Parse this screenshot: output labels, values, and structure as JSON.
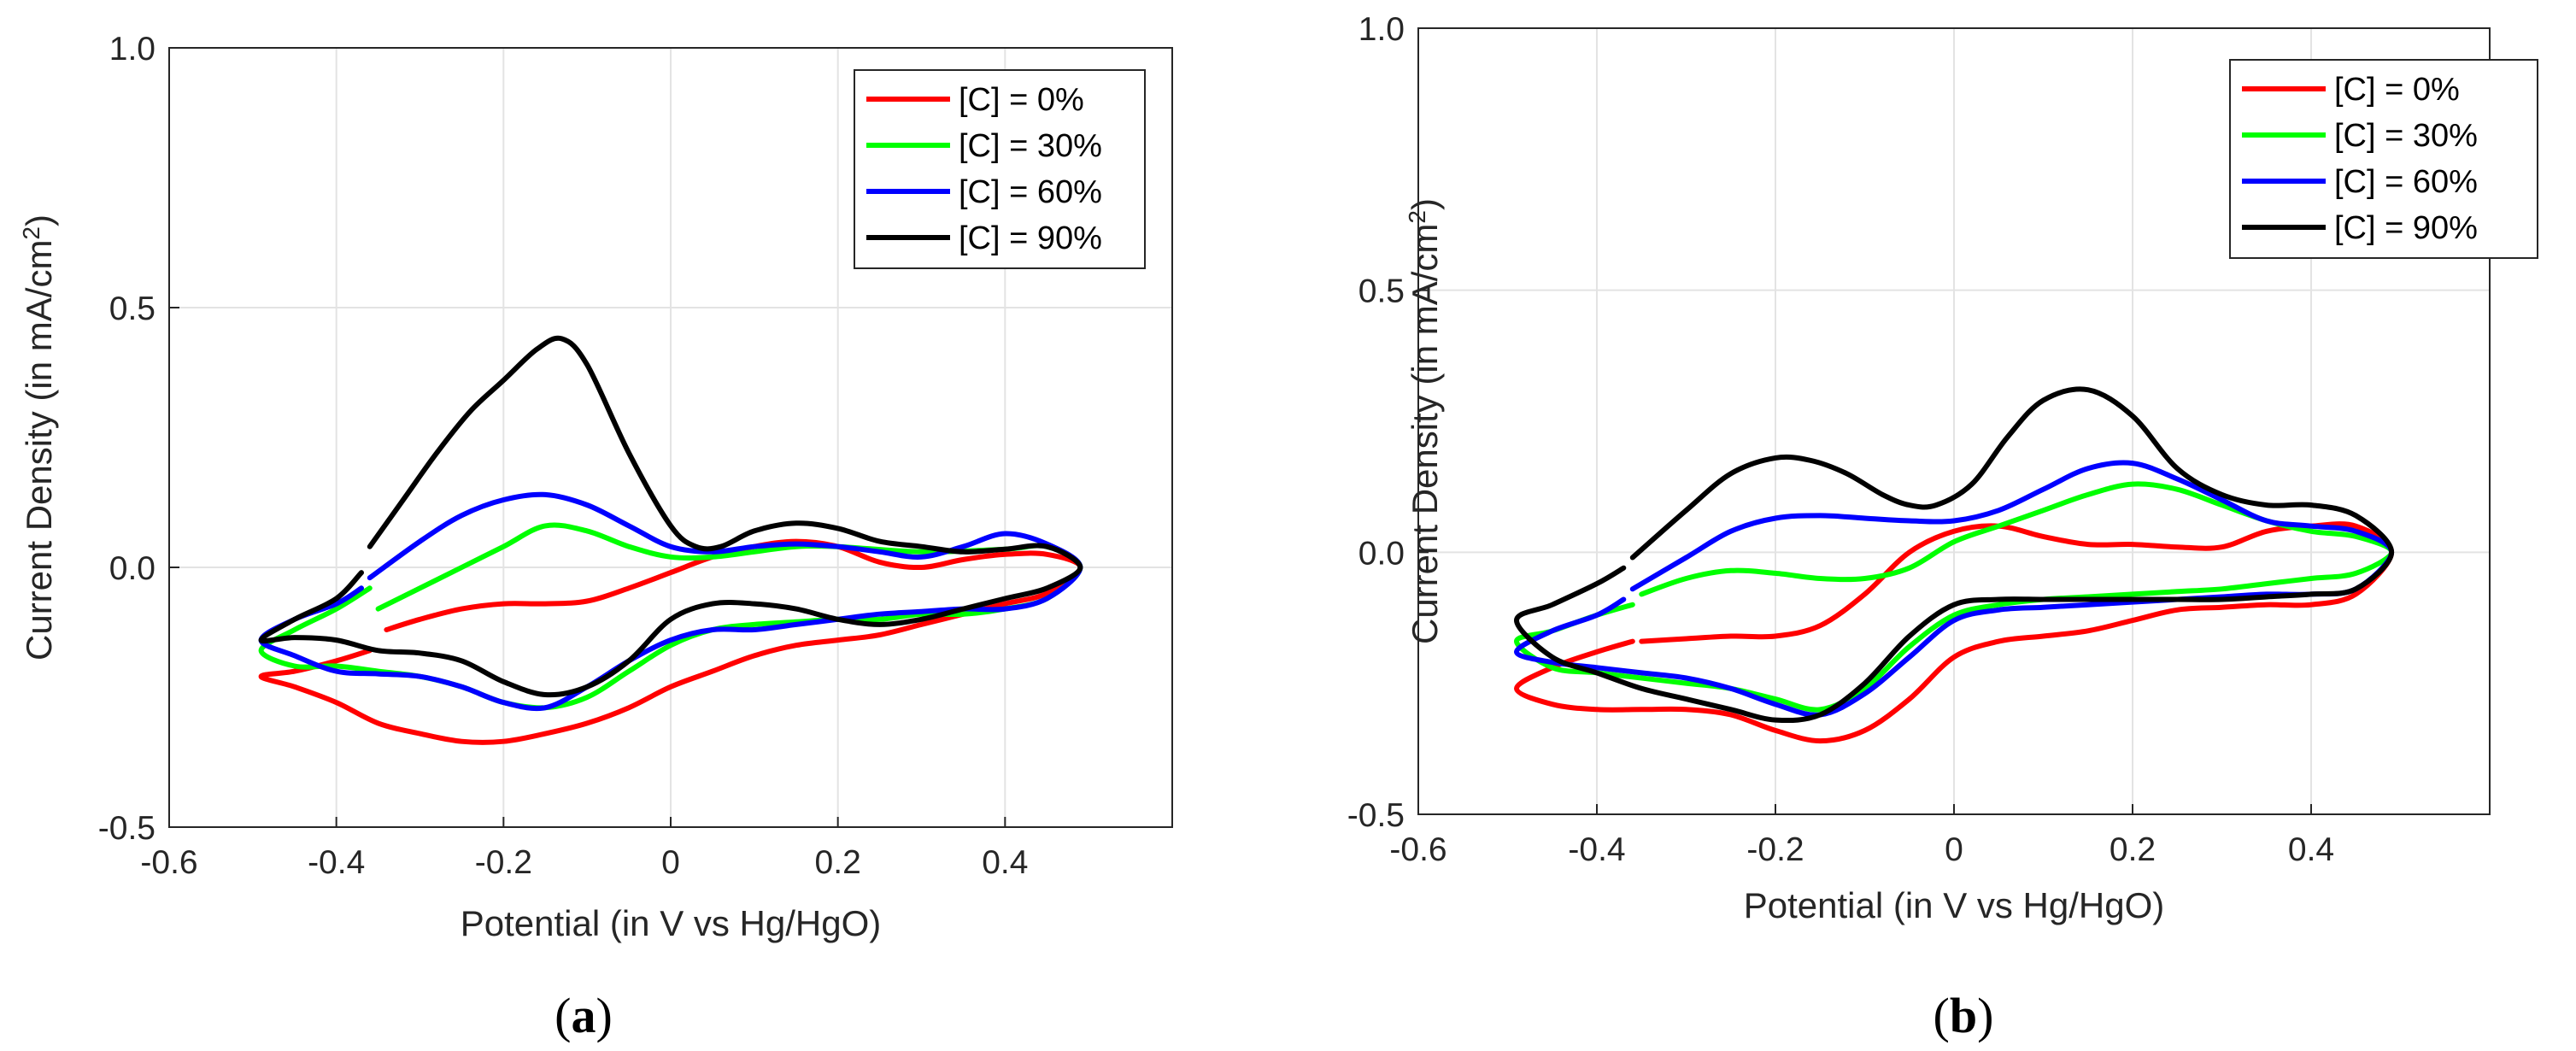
{
  "figure": {
    "panels": [
      {
        "label": "(a)",
        "label_paren_open": "(",
        "label_letter": "a",
        "label_paren_close": ")"
      },
      {
        "label": "(b)",
        "label_paren_open": "(",
        "label_letter": "b",
        "label_paren_close": ")"
      }
    ]
  },
  "chart_data": [
    {
      "type": "line",
      "panel": "(a)",
      "title": "",
      "xlabel": "Potential (in V vs Hg/HgO)",
      "ylabel": "Current Density (in mA/cm",
      "ylabel_sup": "2",
      "ylabel_close": ")",
      "xlim": [
        -0.6,
        0.6
      ],
      "ylim": [
        -0.5,
        1.0
      ],
      "xticks": [
        -0.6,
        -0.4,
        -0.2,
        0,
        0.2,
        0.4
      ],
      "xtick_labels": [
        "-0.6",
        "-0.4",
        "-0.2",
        "0",
        "0.2",
        "0.4"
      ],
      "yticks": [
        -0.5,
        0,
        0.5,
        1.0
      ],
      "ytick_labels": [
        "-0.5",
        "0.0",
        "0.5",
        "1.0"
      ],
      "grid": true,
      "legend_position": "top-right",
      "series": [
        {
          "name": "[C] = 0%",
          "color": "#ff0000",
          "x": [
            -0.34,
            -0.3,
            -0.25,
            -0.2,
            -0.15,
            -0.1,
            -0.05,
            0,
            0.05,
            0.1,
            0.15,
            0.2,
            0.25,
            0.3,
            0.35,
            0.4,
            0.45,
            0.49,
            0.45,
            0.4,
            0.35,
            0.3,
            0.25,
            0.2,
            0.15,
            0.1,
            0.05,
            0,
            -0.05,
            -0.1,
            -0.15,
            -0.2,
            -0.25,
            -0.3,
            -0.35,
            -0.4,
            -0.45,
            -0.49,
            -0.45,
            -0.4,
            -0.36
          ],
          "y": [
            -0.12,
            -0.1,
            -0.08,
            -0.07,
            -0.07,
            -0.065,
            -0.04,
            -0.01,
            0.02,
            0.04,
            0.05,
            0.04,
            0.01,
            0.0,
            0.015,
            0.025,
            0.025,
            0.0,
            -0.05,
            -0.07,
            -0.09,
            -0.11,
            -0.13,
            -0.14,
            -0.15,
            -0.17,
            -0.2,
            -0.23,
            -0.27,
            -0.3,
            -0.32,
            -0.335,
            -0.335,
            -0.32,
            -0.3,
            -0.26,
            -0.23,
            -0.21,
            -0.2,
            -0.18,
            -0.16
          ]
        },
        {
          "name": "[C] = 30%",
          "color": "#00ff00",
          "x": [
            -0.35,
            -0.3,
            -0.25,
            -0.2,
            -0.15,
            -0.1,
            -0.05,
            0,
            0.05,
            0.1,
            0.15,
            0.2,
            0.3,
            0.4,
            0.45,
            0.49,
            0.45,
            0.4,
            0.35,
            0.3,
            0.25,
            0.2,
            0.15,
            0.1,
            0.05,
            0,
            -0.05,
            -0.1,
            -0.15,
            -0.2,
            -0.25,
            -0.3,
            -0.35,
            -0.4,
            -0.45,
            -0.49,
            -0.45,
            -0.4,
            -0.36
          ],
          "y": [
            -0.08,
            -0.04,
            0.0,
            0.04,
            0.08,
            0.07,
            0.04,
            0.02,
            0.02,
            0.03,
            0.04,
            0.04,
            0.03,
            0.035,
            0.04,
            0.0,
            -0.06,
            -0.08,
            -0.09,
            -0.09,
            -0.1,
            -0.1,
            -0.105,
            -0.11,
            -0.12,
            -0.15,
            -0.2,
            -0.25,
            -0.27,
            -0.26,
            -0.23,
            -0.21,
            -0.2,
            -0.19,
            -0.19,
            -0.16,
            -0.12,
            -0.08,
            -0.04
          ]
        },
        {
          "name": "[C] = 60%",
          "color": "#0000ff",
          "x": [
            -0.36,
            -0.3,
            -0.25,
            -0.2,
            -0.15,
            -0.1,
            -0.05,
            0,
            0.05,
            0.1,
            0.15,
            0.2,
            0.25,
            0.3,
            0.35,
            0.4,
            0.45,
            0.49,
            0.45,
            0.4,
            0.35,
            0.3,
            0.25,
            0.2,
            0.15,
            0.1,
            0.05,
            0,
            -0.05,
            -0.1,
            -0.15,
            -0.2,
            -0.25,
            -0.3,
            -0.35,
            -0.4,
            -0.45,
            -0.49,
            -0.45,
            -0.4,
            -0.37
          ],
          "y": [
            -0.02,
            0.05,
            0.1,
            0.13,
            0.14,
            0.12,
            0.08,
            0.04,
            0.03,
            0.04,
            0.045,
            0.04,
            0.03,
            0.02,
            0.04,
            0.065,
            0.045,
            0.0,
            -0.06,
            -0.08,
            -0.08,
            -0.085,
            -0.09,
            -0.1,
            -0.11,
            -0.12,
            -0.12,
            -0.14,
            -0.18,
            -0.23,
            -0.27,
            -0.26,
            -0.23,
            -0.21,
            -0.205,
            -0.2,
            -0.17,
            -0.14,
            -0.1,
            -0.07,
            -0.04
          ]
        },
        {
          "name": "[C] = 90%",
          "color": "#000000",
          "x": [
            -0.36,
            -0.32,
            -0.28,
            -0.24,
            -0.2,
            -0.16,
            -0.13,
            -0.1,
            -0.05,
            0,
            0.03,
            0.06,
            0.1,
            0.15,
            0.2,
            0.25,
            0.3,
            0.35,
            0.4,
            0.45,
            0.49,
            0.45,
            0.4,
            0.35,
            0.3,
            0.25,
            0.2,
            0.15,
            0.1,
            0.05,
            0,
            -0.05,
            -0.1,
            -0.15,
            -0.2,
            -0.25,
            -0.3,
            -0.35,
            -0.4,
            -0.45,
            -0.49,
            -0.45,
            -0.4,
            -0.37
          ],
          "y": [
            0.04,
            0.13,
            0.22,
            0.3,
            0.36,
            0.42,
            0.44,
            0.39,
            0.22,
            0.08,
            0.04,
            0.04,
            0.07,
            0.085,
            0.075,
            0.05,
            0.04,
            0.03,
            0.035,
            0.04,
            0.0,
            -0.04,
            -0.06,
            -0.08,
            -0.1,
            -0.11,
            -0.1,
            -0.08,
            -0.07,
            -0.07,
            -0.1,
            -0.18,
            -0.23,
            -0.245,
            -0.22,
            -0.18,
            -0.165,
            -0.16,
            -0.14,
            -0.135,
            -0.14,
            -0.1,
            -0.06,
            -0.01
          ]
        }
      ]
    },
    {
      "type": "line",
      "panel": "(b)",
      "title": "",
      "xlabel": "Potential (in V vs Hg/HgO)",
      "ylabel": "Current Density (in mA/cm",
      "ylabel_sup": "2",
      "ylabel_close": ")",
      "xlim": [
        -0.6,
        0.6
      ],
      "ylim": [
        -0.5,
        1.0
      ],
      "xticks": [
        -0.6,
        -0.4,
        -0.2,
        0,
        0.2,
        0.4
      ],
      "xtick_labels": [
        "-0.6",
        "-0.4",
        "-0.2",
        "0",
        "0.2",
        "0.4"
      ],
      "yticks": [
        -0.5,
        0,
        0.5,
        1.0
      ],
      "ytick_labels": [
        "-0.5",
        "0.0",
        "0.5",
        "1.0"
      ],
      "grid": true,
      "legend_position": "top-right",
      "series": [
        {
          "name": "[C] = 0%",
          "color": "#ff0000",
          "x": [
            -0.35,
            -0.3,
            -0.25,
            -0.2,
            -0.15,
            -0.1,
            -0.05,
            0,
            0.05,
            0.1,
            0.15,
            0.2,
            0.25,
            0.3,
            0.35,
            0.4,
            0.45,
            0.49,
            0.45,
            0.4,
            0.35,
            0.3,
            0.25,
            0.2,
            0.15,
            0.1,
            0.05,
            0,
            -0.05,
            -0.1,
            -0.15,
            -0.2,
            -0.25,
            -0.3,
            -0.35,
            -0.4,
            -0.45,
            -0.49,
            -0.45,
            -0.4,
            -0.36
          ],
          "y": [
            -0.17,
            -0.165,
            -0.16,
            -0.16,
            -0.14,
            -0.08,
            0.0,
            0.04,
            0.05,
            0.03,
            0.015,
            0.015,
            0.01,
            0.01,
            0.04,
            0.05,
            0.05,
            0.0,
            -0.08,
            -0.1,
            -0.1,
            -0.105,
            -0.11,
            -0.13,
            -0.15,
            -0.16,
            -0.17,
            -0.2,
            -0.28,
            -0.34,
            -0.36,
            -0.34,
            -0.31,
            -0.3,
            -0.3,
            -0.3,
            -0.29,
            -0.26,
            -0.22,
            -0.19,
            -0.17
          ]
        },
        {
          "name": "[C] = 30%",
          "color": "#00ff00",
          "x": [
            -0.35,
            -0.3,
            -0.25,
            -0.2,
            -0.15,
            -0.1,
            -0.05,
            0,
            0.05,
            0.1,
            0.15,
            0.2,
            0.25,
            0.3,
            0.35,
            0.4,
            0.45,
            0.49,
            0.45,
            0.4,
            0.35,
            0.3,
            0.25,
            0.2,
            0.15,
            0.1,
            0.05,
            0,
            -0.05,
            -0.1,
            -0.15,
            -0.2,
            -0.25,
            -0.3,
            -0.35,
            -0.4,
            -0.45,
            -0.49,
            -0.45,
            -0.4,
            -0.36
          ],
          "y": [
            -0.08,
            -0.05,
            -0.035,
            -0.04,
            -0.05,
            -0.05,
            -0.03,
            0.02,
            0.05,
            0.08,
            0.11,
            0.13,
            0.12,
            0.09,
            0.06,
            0.04,
            0.03,
            0.0,
            -0.04,
            -0.05,
            -0.06,
            -0.07,
            -0.075,
            -0.08,
            -0.085,
            -0.09,
            -0.1,
            -0.12,
            -0.18,
            -0.26,
            -0.3,
            -0.28,
            -0.26,
            -0.25,
            -0.24,
            -0.23,
            -0.22,
            -0.17,
            -0.15,
            -0.12,
            -0.1
          ]
        },
        {
          "name": "[C] = 60%",
          "color": "#0000ff",
          "x": [
            -0.36,
            -0.3,
            -0.25,
            -0.2,
            -0.15,
            -0.1,
            -0.05,
            0,
            0.05,
            0.1,
            0.15,
            0.2,
            0.25,
            0.3,
            0.35,
            0.4,
            0.45,
            0.49,
            0.45,
            0.4,
            0.35,
            0.3,
            0.25,
            0.2,
            0.15,
            0.1,
            0.05,
            0,
            -0.05,
            -0.1,
            -0.15,
            -0.2,
            -0.25,
            -0.3,
            -0.35,
            -0.4,
            -0.45,
            -0.49,
            -0.45,
            -0.4,
            -0.37
          ],
          "y": [
            -0.07,
            -0.01,
            0.04,
            0.065,
            0.07,
            0.065,
            0.06,
            0.06,
            0.08,
            0.12,
            0.16,
            0.17,
            0.14,
            0.1,
            0.06,
            0.05,
            0.04,
            0.0,
            -0.07,
            -0.08,
            -0.08,
            -0.085,
            -0.09,
            -0.095,
            -0.1,
            -0.105,
            -0.11,
            -0.13,
            -0.2,
            -0.27,
            -0.31,
            -0.29,
            -0.26,
            -0.24,
            -0.23,
            -0.22,
            -0.21,
            -0.19,
            -0.15,
            -0.12,
            -0.09
          ]
        },
        {
          "name": "[C] = 90%",
          "color": "#000000",
          "x": [
            -0.36,
            -0.3,
            -0.25,
            -0.2,
            -0.16,
            -0.12,
            -0.08,
            -0.05,
            -0.02,
            0.02,
            0.06,
            0.1,
            0.15,
            0.2,
            0.25,
            0.3,
            0.35,
            0.4,
            0.45,
            0.49,
            0.45,
            0.4,
            0.35,
            0.3,
            0.25,
            0.2,
            0.15,
            0.1,
            0.05,
            0,
            -0.05,
            -0.1,
            -0.15,
            -0.2,
            -0.25,
            -0.3,
            -0.35,
            -0.4,
            -0.45,
            -0.49,
            -0.45,
            -0.4,
            -0.37
          ],
          "y": [
            -0.01,
            0.08,
            0.15,
            0.18,
            0.175,
            0.15,
            0.11,
            0.09,
            0.09,
            0.13,
            0.22,
            0.29,
            0.31,
            0.26,
            0.16,
            0.11,
            0.09,
            0.09,
            0.07,
            0.0,
            -0.07,
            -0.08,
            -0.085,
            -0.09,
            -0.09,
            -0.09,
            -0.09,
            -0.09,
            -0.09,
            -0.1,
            -0.16,
            -0.25,
            -0.31,
            -0.32,
            -0.3,
            -0.28,
            -0.26,
            -0.23,
            -0.2,
            -0.13,
            -0.1,
            -0.06,
            -0.03
          ]
        }
      ]
    }
  ]
}
